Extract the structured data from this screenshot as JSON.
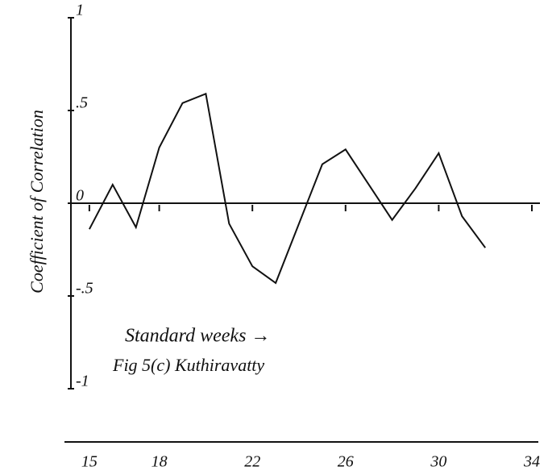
{
  "chart_data": {
    "type": "line",
    "y_label": "Coefficient of Correlation",
    "annotations": [
      "Standard weeks →",
      "Fig 5(c) Kuthiravatty"
    ],
    "x": [
      15,
      16,
      17,
      18,
      19,
      20,
      21,
      22,
      23,
      25,
      26,
      28,
      29,
      30,
      31,
      32
    ],
    "values": [
      -0.14,
      0.1,
      -0.13,
      0.3,
      0.54,
      0.59,
      -0.11,
      -0.34,
      -0.43,
      0.21,
      0.29,
      -0.09,
      0.08,
      0.27,
      -0.07,
      -0.24
    ],
    "color": "#111111",
    "xlim": [
      14.9,
      34
    ],
    "xticks": [
      15,
      18,
      22,
      26,
      30,
      34
    ],
    "ylim": [
      -1,
      1
    ],
    "yticks": [
      1,
      {
        "value": 0.5,
        "label": ".5"
      },
      0,
      {
        "value": -0.5,
        "label": "-.5"
      },
      -1
    ]
  }
}
